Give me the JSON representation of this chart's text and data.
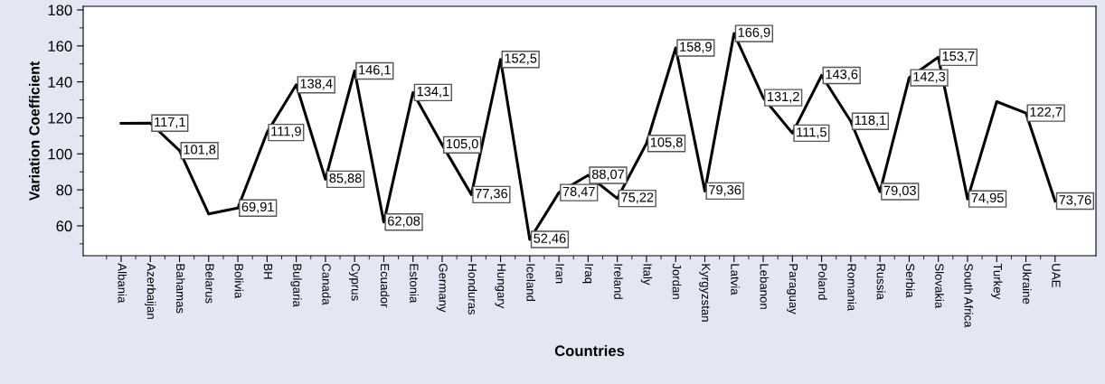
{
  "chart_data": {
    "type": "line",
    "xlabel": "Countries",
    "ylabel": "Variation Coefficient",
    "categories": [
      "Albania",
      "Azerbaijan",
      "Bahamas",
      "Belarus",
      "Bolivia",
      "BH",
      "Bulgaria",
      "Canada",
      "Cyprus",
      "Ecuador",
      "Estonia",
      "Germany",
      "Honduras",
      "Hungary",
      "Iceland",
      "Iran",
      "Iraq",
      "Ireland",
      "Italy",
      "Jordan",
      "Kyrgyzstan",
      "Latvia",
      "Lebanon",
      "Paraguay",
      "Poland",
      "Romania",
      "Russia",
      "Serbia",
      "Slovakia",
      "South Africa",
      "Turkey",
      "Ukraine",
      "UAE"
    ],
    "values": [
      117,
      117.1,
      101.8,
      66.6,
      69.91,
      111.9,
      138.4,
      85.88,
      146.1,
      62.08,
      134.1,
      105.0,
      77.36,
      152.5,
      52.46,
      78.47,
      88.07,
      75.22,
      105.8,
      158.9,
      79.36,
      166.9,
      131.2,
      111.5,
      143.6,
      118.1,
      79.03,
      142.3,
      153.7,
      74.95,
      129,
      122.7,
      73.76
    ],
    "value_labels": [
      null,
      "117,1",
      "101,8",
      null,
      "69,91",
      "111,9",
      "138,4",
      "85,88",
      "146,1",
      "62,08",
      "134,1",
      "105,0",
      "77,36",
      "152,5",
      "52,46",
      "78,47",
      "88,07",
      "75,22",
      "105,8",
      "158,9",
      "79,36",
      "166,9",
      "131,2",
      "111,5",
      "143,6",
      "118,1",
      "79,03",
      "142,3",
      "153,7",
      "74,95",
      null,
      "122,7",
      "73,76"
    ],
    "color": "#000000",
    "line_style": "solid",
    "grid": false,
    "legend": false,
    "ylim": [
      43.4,
      182
    ],
    "yticks": [
      60,
      80,
      100,
      120,
      140,
      160,
      180
    ]
  }
}
